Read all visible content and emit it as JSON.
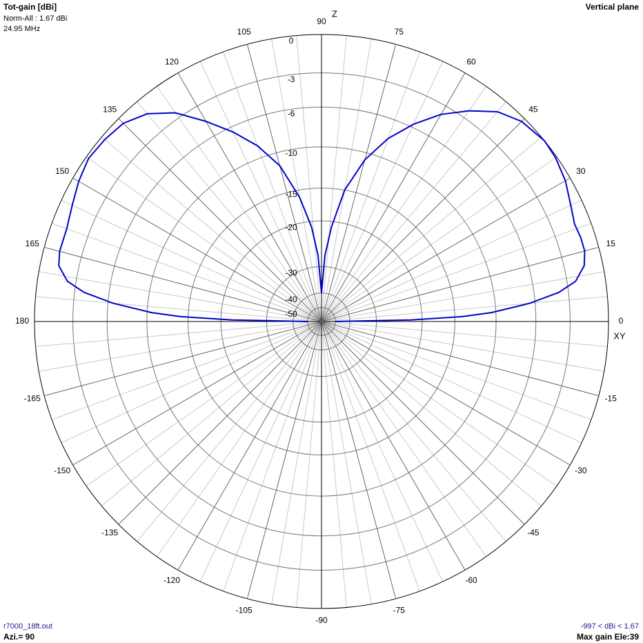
{
  "chart_data": {
    "type": "polar",
    "title": "Tot-gain [dBi]",
    "subtitle": "Norm-All : 1.67 dBi",
    "frequency": "24.95 MHz",
    "plane": "Vertical plane",
    "axis_z": "Z",
    "axis_xy": "XY",
    "file": "r7000_18ft.out",
    "azimuth": "Azi.= 90",
    "range_note": "-997 < dBi < 1.67",
    "max_gain": "Max gain Ele:39",
    "rlim": [
      -50,
      0
    ],
    "rticks": [
      0,
      -3,
      -6,
      -10,
      -15,
      -20,
      -30,
      -40,
      -50
    ],
    "thetaticks": [
      0,
      15,
      30,
      45,
      60,
      75,
      90,
      105,
      120,
      135,
      150,
      165,
      180,
      -165,
      -150,
      -135,
      -120,
      -105,
      -90,
      -75,
      -60,
      -45,
      -30,
      -15
    ],
    "grid": true,
    "series": [
      {
        "color": "#0000c8",
        "x": [
          0,
          1,
          2,
          3,
          5,
          7,
          9,
          12,
          15,
          18,
          21,
          25,
          30,
          35,
          39,
          45,
          50,
          55,
          60,
          65,
          70,
          75,
          80,
          84,
          87,
          90,
          93,
          96,
          100,
          105,
          110,
          115,
          120,
          125,
          130,
          135,
          140,
          145,
          150,
          155,
          160,
          165,
          168,
          171,
          173,
          175,
          177,
          178,
          179,
          180
        ],
        "values": [
          -50,
          -22,
          -14,
          -10.5,
          -6.5,
          -3.8,
          -2.3,
          -1.4,
          -1.1,
          -1.1,
          -1.2,
          -0.9,
          -0.4,
          -0.1,
          0,
          -0.3,
          -1.0,
          -2.3,
          -3.8,
          -5.7,
          -7.9,
          -10.8,
          -15,
          -21,
          -27,
          -40,
          -27,
          -21,
          -16,
          -11.5,
          -8.7,
          -6.5,
          -4.5,
          -2.5,
          -1.2,
          -0.5,
          -0.3,
          -0.2,
          -0.5,
          -0.9,
          -1.2,
          -1.2,
          -1.4,
          -2.3,
          -3.8,
          -6.5,
          -10.5,
          -14,
          -22,
          -50
        ]
      }
    ]
  }
}
